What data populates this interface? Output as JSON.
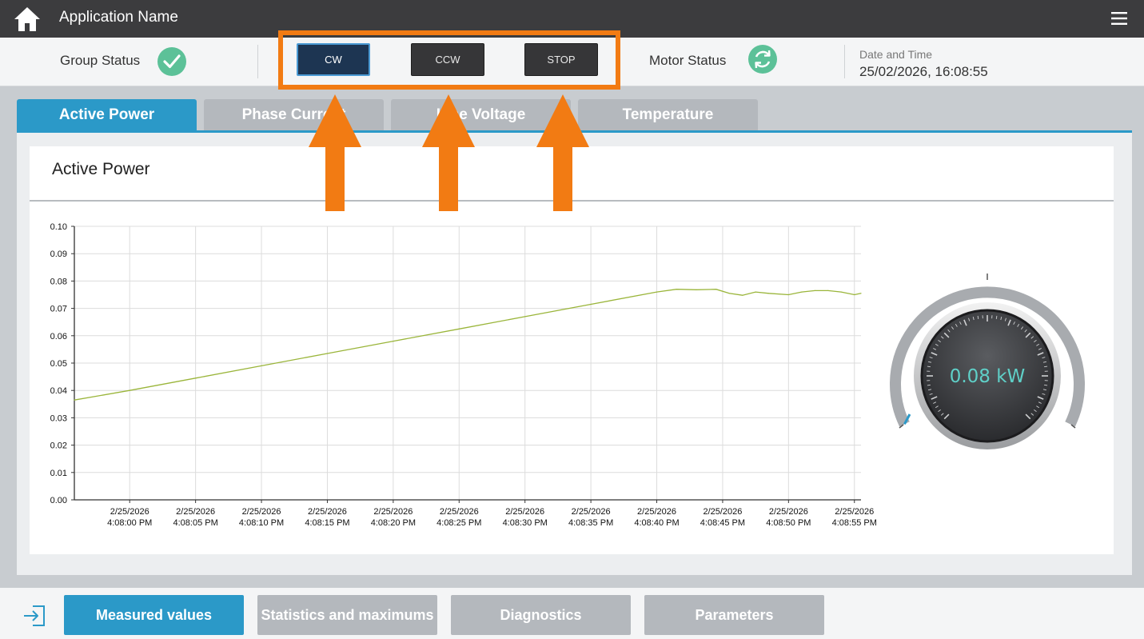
{
  "header": {
    "app_title": "Application Name",
    "home_icon": "home-icon",
    "menu_icon": "hamburger-menu-icon"
  },
  "status": {
    "group_status_label": "Group Status",
    "motor_status_label": "Motor Status",
    "controls": [
      {
        "label": "CW",
        "active": true
      },
      {
        "label": "CCW",
        "active": false
      },
      {
        "label": "STOP",
        "active": false
      }
    ],
    "datetime_label": "Date and Time",
    "datetime_value": "25/02/2026, 16:08:55"
  },
  "tabs": [
    {
      "label": "Active Power",
      "active": true
    },
    {
      "label": "Phase Current",
      "active": false
    },
    {
      "label": "Line Voltage",
      "active": false
    },
    {
      "label": "Temperature",
      "active": false
    }
  ],
  "panel": {
    "title": "Active Power"
  },
  "gauge": {
    "value_text": "0.08 kW",
    "value": 0.08,
    "color": "#5fd0c8"
  },
  "colors": {
    "accent": "#2b99c8",
    "highlight": "#f27b13",
    "status_ok": "#5cc198",
    "series_line": "#9ab53a"
  },
  "chart_data": {
    "type": "line",
    "title": "",
    "xlabel": "",
    "ylabel": "",
    "ylim": [
      0,
      0.1
    ],
    "yticks": [
      "0.10",
      "0.09",
      "0.08",
      "0.07",
      "0.06",
      "0.05",
      "0.04",
      "0.03",
      "0.02",
      "0.01",
      "0.00"
    ],
    "xticks": [
      [
        "2/25/2026",
        "4:08:00 PM"
      ],
      [
        "2/25/2026",
        "4:08:05 PM"
      ],
      [
        "2/25/2026",
        "4:08:10 PM"
      ],
      [
        "2/25/2026",
        "4:08:15 PM"
      ],
      [
        "2/25/2026",
        "4:08:20 PM"
      ],
      [
        "2/25/2026",
        "4:08:25 PM"
      ],
      [
        "2/25/2026",
        "4:08:30 PM"
      ],
      [
        "2/25/2026",
        "4:08:35 PM"
      ],
      [
        "2/25/2026",
        "4:08:40 PM"
      ],
      [
        "2/25/2026",
        "4:08:45 PM"
      ],
      [
        "2/25/2026",
        "4:08:50 PM"
      ],
      [
        "2/25/2026",
        "4:08:55 PM"
      ]
    ],
    "grid": true,
    "series": [
      {
        "x": [
          -4.2,
          0,
          5,
          10,
          15,
          20,
          25,
          30,
          35,
          40,
          41.5,
          43,
          44.5,
          45.5,
          46.5,
          47.5,
          48.5,
          50,
          51,
          52,
          53,
          54,
          55,
          55.5
        ],
        "values": [
          0.0365,
          0.04,
          0.0445,
          0.049,
          0.0535,
          0.058,
          0.0625,
          0.067,
          0.0715,
          0.076,
          0.077,
          0.0768,
          0.077,
          0.0755,
          0.0748,
          0.076,
          0.0755,
          0.075,
          0.076,
          0.0765,
          0.0765,
          0.076,
          0.075,
          0.0755
        ]
      }
    ]
  },
  "bottom_nav": [
    {
      "label": "Measured values",
      "active": true
    },
    {
      "label": "Statistics and maximums",
      "active": false
    },
    {
      "label": "Diagnostics",
      "active": false
    },
    {
      "label": "Parameters",
      "active": false
    }
  ],
  "logout_icon": "logout-icon"
}
